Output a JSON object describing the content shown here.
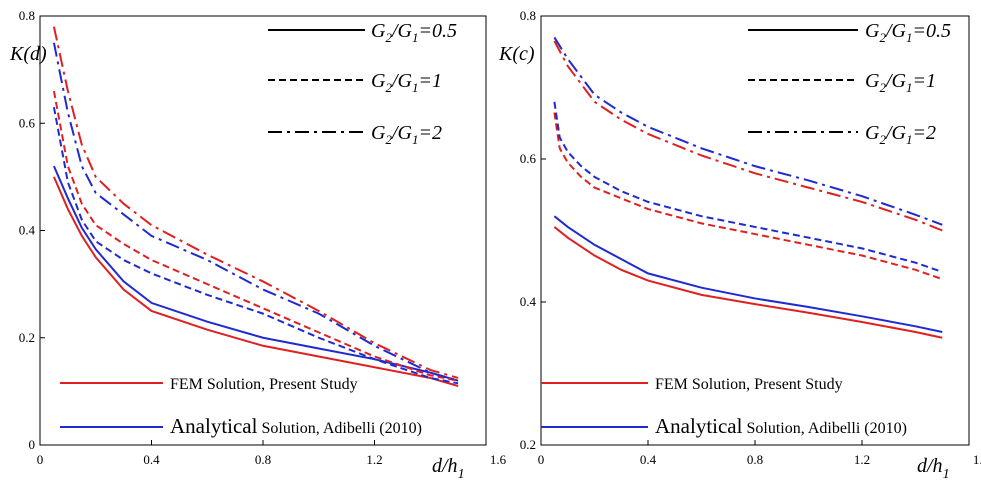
{
  "colors": {
    "fem": "#e02020",
    "analytical": "#1f2ad0",
    "legend_ratio": "#000000"
  },
  "legend": {
    "ratio_entries": [
      {
        "label_parts": [
          "G",
          "2",
          "/G",
          "1",
          "=0.5"
        ],
        "style": "solid"
      },
      {
        "label_parts": [
          "G",
          "2",
          "/G",
          "1",
          "=1"
        ],
        "style": "dashed"
      },
      {
        "label_parts": [
          "G",
          "2",
          "/G",
          "1",
          "=2"
        ],
        "style": "dashdot"
      }
    ],
    "method_entries": [
      {
        "method": "fem",
        "main": "FEM Solution, Present Study",
        "suffix": ""
      },
      {
        "method": "analytical",
        "main": "Analytical",
        "suffix": " Solution, Adibelli (2010)"
      }
    ]
  },
  "chart_data": [
    {
      "type": "line",
      "ylabel": "K(d)",
      "xlabel": {
        "main": "d/h",
        "sub": "1"
      },
      "xlim": [
        0,
        1.6
      ],
      "ylim": [
        0,
        0.8
      ],
      "xticks": [
        "0",
        "0.4",
        "0.8",
        "1.2",
        "1.6"
      ],
      "yticks": [
        "0",
        "0.2",
        "0.4",
        "0.6",
        "0.8"
      ],
      "series": [
        {
          "method": "fem",
          "style": "solid",
          "x": [
            0.05,
            0.1,
            0.15,
            0.2,
            0.3,
            0.4,
            0.6,
            0.8,
            1.0,
            1.2,
            1.4,
            1.5
          ],
          "y": [
            0.5,
            0.44,
            0.39,
            0.35,
            0.29,
            0.25,
            0.215,
            0.185,
            0.165,
            0.145,
            0.125,
            0.11
          ]
        },
        {
          "method": "analytical",
          "style": "solid",
          "x": [
            0.05,
            0.1,
            0.15,
            0.2,
            0.3,
            0.4,
            0.6,
            0.8,
            1.0,
            1.2,
            1.4,
            1.5
          ],
          "y": [
            0.52,
            0.46,
            0.405,
            0.365,
            0.305,
            0.265,
            0.23,
            0.2,
            0.18,
            0.16,
            0.135,
            0.12
          ]
        },
        {
          "method": "fem",
          "style": "dashed",
          "x": [
            0.05,
            0.1,
            0.15,
            0.2,
            0.3,
            0.4,
            0.6,
            0.8,
            1.0,
            1.2,
            1.4,
            1.5
          ],
          "y": [
            0.66,
            0.52,
            0.45,
            0.41,
            0.375,
            0.345,
            0.3,
            0.255,
            0.21,
            0.165,
            0.13,
            0.12
          ]
        },
        {
          "method": "analytical",
          "style": "dashed",
          "x": [
            0.05,
            0.1,
            0.15,
            0.2,
            0.3,
            0.4,
            0.6,
            0.8,
            1.0,
            1.2,
            1.4,
            1.5
          ],
          "y": [
            0.63,
            0.49,
            0.42,
            0.38,
            0.345,
            0.32,
            0.28,
            0.245,
            0.2,
            0.16,
            0.125,
            0.115
          ]
        },
        {
          "method": "fem",
          "style": "dashdot",
          "x": [
            0.05,
            0.1,
            0.15,
            0.2,
            0.3,
            0.4,
            0.6,
            0.8,
            1.0,
            1.2,
            1.4,
            1.5
          ],
          "y": [
            0.78,
            0.66,
            0.56,
            0.5,
            0.45,
            0.41,
            0.355,
            0.305,
            0.25,
            0.19,
            0.14,
            0.125
          ]
        },
        {
          "method": "analytical",
          "style": "dashdot",
          "x": [
            0.05,
            0.1,
            0.15,
            0.2,
            0.3,
            0.4,
            0.6,
            0.8,
            1.0,
            1.2,
            1.4,
            1.5
          ],
          "y": [
            0.75,
            0.62,
            0.52,
            0.47,
            0.43,
            0.39,
            0.345,
            0.29,
            0.245,
            0.185,
            0.135,
            0.12
          ]
        }
      ]
    },
    {
      "type": "line",
      "ylabel": "K(c)",
      "xlabel": {
        "main": "d/h",
        "sub": "1"
      },
      "xlim": [
        0,
        1.6
      ],
      "ylim": [
        0.2,
        0.8
      ],
      "xticks": [
        "0",
        "0.4",
        "0.8",
        "1.2",
        "1.6"
      ],
      "yticks": [
        "0.2",
        "0.4",
        "0.6",
        "0.8"
      ],
      "series": [
        {
          "method": "fem",
          "style": "solid",
          "x": [
            0.05,
            0.1,
            0.2,
            0.3,
            0.4,
            0.6,
            0.8,
            1.0,
            1.2,
            1.4,
            1.5
          ],
          "y": [
            0.505,
            0.49,
            0.465,
            0.445,
            0.43,
            0.41,
            0.397,
            0.385,
            0.372,
            0.358,
            0.35
          ]
        },
        {
          "method": "analytical",
          "style": "solid",
          "x": [
            0.05,
            0.1,
            0.2,
            0.3,
            0.4,
            0.6,
            0.8,
            1.0,
            1.2,
            1.4,
            1.5
          ],
          "y": [
            0.52,
            0.505,
            0.48,
            0.46,
            0.44,
            0.42,
            0.405,
            0.393,
            0.38,
            0.366,
            0.358
          ]
        },
        {
          "method": "fem",
          "style": "dashed",
          "x": [
            0.05,
            0.07,
            0.1,
            0.15,
            0.2,
            0.3,
            0.4,
            0.6,
            0.8,
            1.0,
            1.2,
            1.4,
            1.5
          ],
          "y": [
            0.665,
            0.615,
            0.595,
            0.575,
            0.56,
            0.545,
            0.53,
            0.51,
            0.495,
            0.48,
            0.465,
            0.445,
            0.432
          ]
        },
        {
          "method": "analytical",
          "style": "dashed",
          "x": [
            0.05,
            0.07,
            0.1,
            0.15,
            0.2,
            0.3,
            0.4,
            0.6,
            0.8,
            1.0,
            1.2,
            1.4,
            1.5
          ],
          "y": [
            0.68,
            0.63,
            0.61,
            0.59,
            0.575,
            0.555,
            0.54,
            0.52,
            0.505,
            0.49,
            0.475,
            0.455,
            0.442
          ]
        },
        {
          "method": "fem",
          "style": "dashdot",
          "x": [
            0.05,
            0.1,
            0.2,
            0.3,
            0.4,
            0.6,
            0.8,
            1.0,
            1.2,
            1.4,
            1.5
          ],
          "y": [
            0.765,
            0.73,
            0.68,
            0.655,
            0.635,
            0.605,
            0.58,
            0.56,
            0.54,
            0.515,
            0.5
          ]
        },
        {
          "method": "analytical",
          "style": "dashdot",
          "x": [
            0.05,
            0.1,
            0.2,
            0.3,
            0.4,
            0.6,
            0.8,
            1.0,
            1.2,
            1.4,
            1.5
          ],
          "y": [
            0.77,
            0.74,
            0.69,
            0.665,
            0.645,
            0.615,
            0.59,
            0.57,
            0.548,
            0.522,
            0.508
          ]
        }
      ]
    }
  ]
}
